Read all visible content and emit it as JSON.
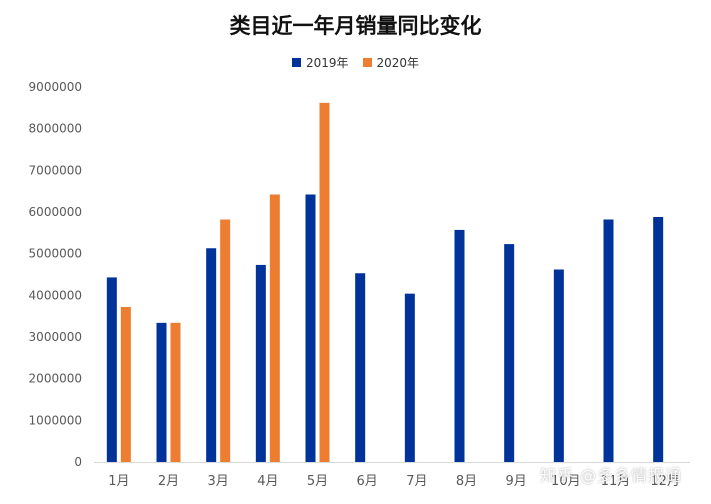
{
  "chart_data": {
    "type": "bar",
    "title": "类目近一年月销量同比变化",
    "categories": [
      "1月",
      "2月",
      "3月",
      "4月",
      "5月",
      "6月",
      "7月",
      "8月",
      "9月",
      "10月",
      "11月",
      "12月"
    ],
    "series": [
      {
        "name": "2019年",
        "color": "#003399",
        "values": [
          4430000,
          3340000,
          5130000,
          4730000,
          6420000,
          4530000,
          4040000,
          5570000,
          5230000,
          4620000,
          5820000,
          5880000
        ]
      },
      {
        "name": "2020年",
        "color": "#ED7D31",
        "values": [
          3720000,
          3340000,
          5820000,
          6420000,
          8620000,
          null,
          null,
          null,
          null,
          null,
          null,
          null
        ]
      }
    ],
    "ylim": [
      0,
      9000000
    ],
    "yticks": [
      "0",
      "1000000",
      "2000000",
      "3000000",
      "4000000",
      "5000000",
      "6000000",
      "7000000",
      "8000000",
      "9000000"
    ],
    "xlabel": "",
    "ylabel": "",
    "legend_position": "top",
    "grid": false
  },
  "watermark": "知乎 @多多情报通"
}
